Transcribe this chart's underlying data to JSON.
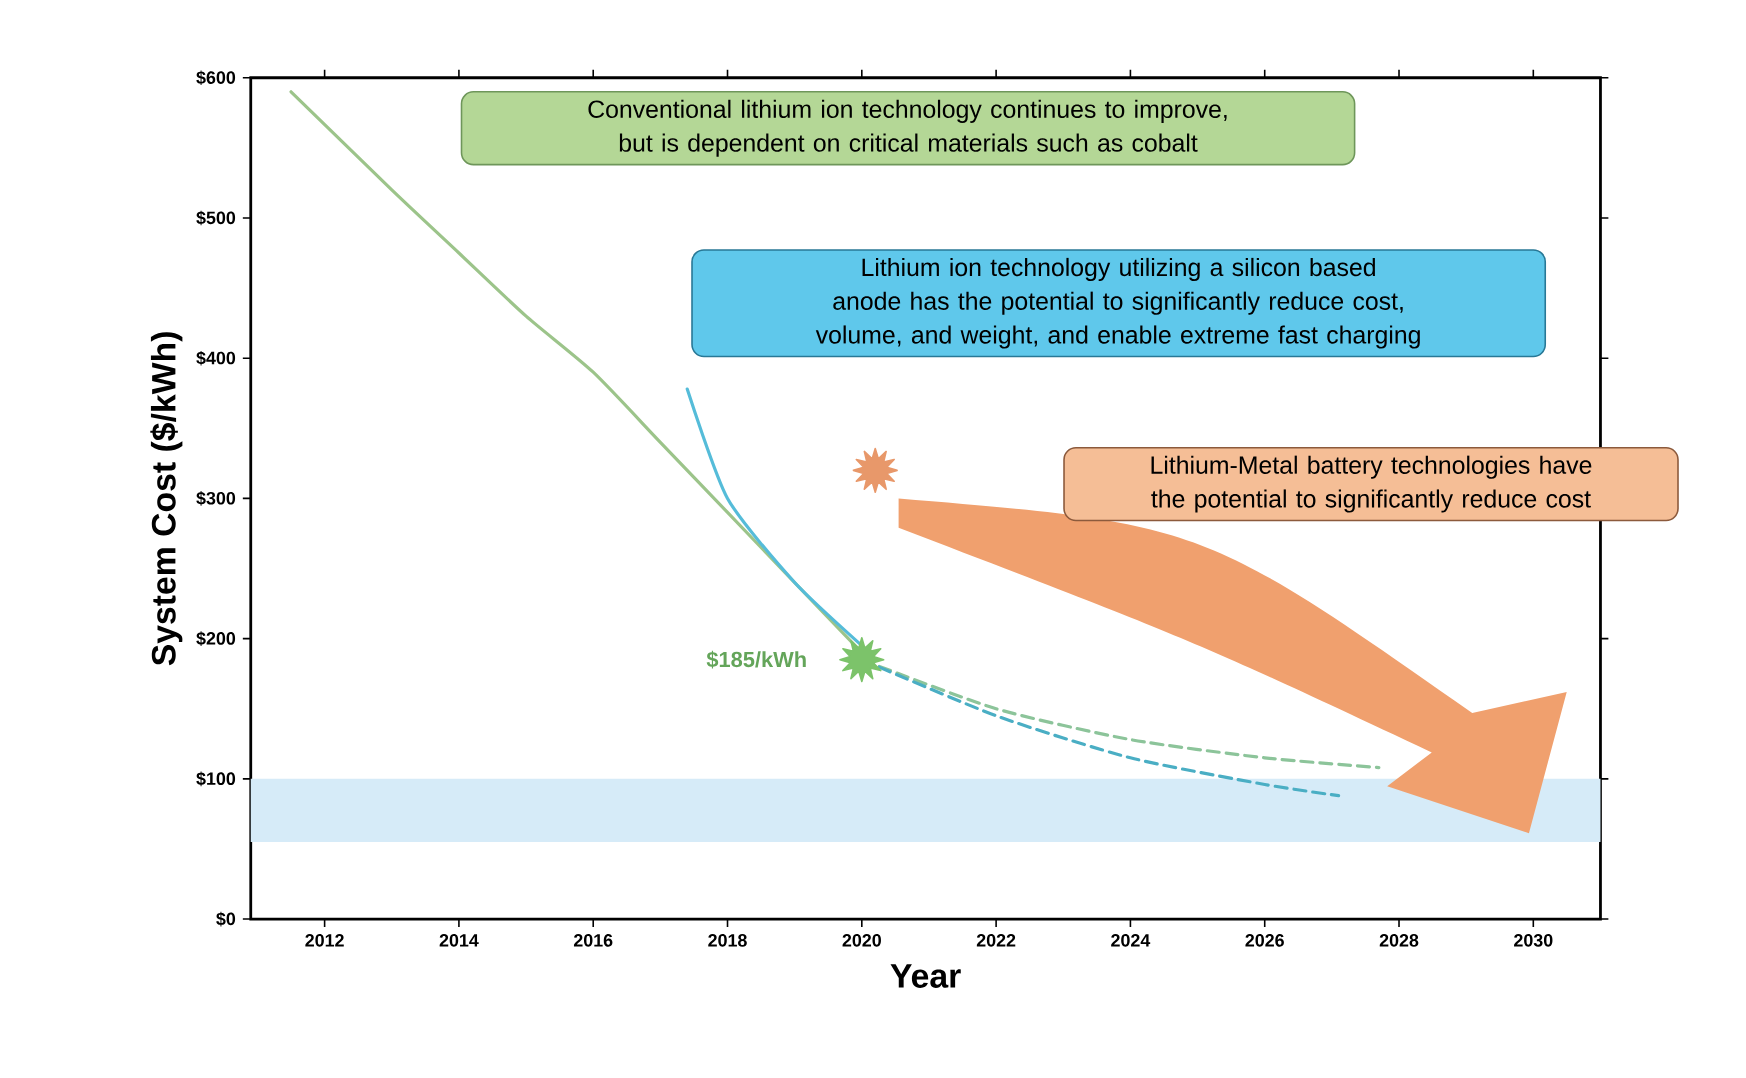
{
  "chart_data": {
    "type": "line",
    "xlabel": "Year",
    "ylabel": "System Cost ($/kWh)",
    "xlim": [
      2010.9,
      2031
    ],
    "ylim": [
      0,
      600
    ],
    "xticks": [
      2012,
      2014,
      2016,
      2018,
      2020,
      2022,
      2024,
      2026,
      2028,
      2030
    ],
    "yticks": [
      {
        "value": 0,
        "label": "$0"
      },
      {
        "value": 100,
        "label": "$100"
      },
      {
        "value": 200,
        "label": "$200"
      },
      {
        "value": 300,
        "label": "$300"
      },
      {
        "value": 400,
        "label": "$400"
      },
      {
        "value": 500,
        "label": "$500"
      },
      {
        "value": 600,
        "label": "$600"
      }
    ],
    "grid": false,
    "marker": "none",
    "series": [
      {
        "color": "#9cc48a",
        "x": [
          2011.5,
          2013,
          2014,
          2015,
          2016,
          2017,
          2018,
          2019,
          2020
        ],
        "values": [
          590,
          520,
          475,
          430,
          390,
          340,
          290,
          240,
          190
        ]
      },
      {
        "color": "#55bcd9",
        "x": [
          2017.4,
          2018,
          2019,
          2020
        ],
        "values": [
          378,
          300,
          240,
          195
        ]
      },
      {
        "color": "#8cc49a",
        "line_style": "dashed",
        "x": [
          2020,
          2022,
          2024,
          2026,
          2027.7
        ],
        "values": [
          185,
          150,
          128,
          115,
          108
        ]
      },
      {
        "color": "#4aaec4",
        "line_style": "dashed",
        "x": [
          2020,
          2022,
          2024,
          2026,
          2027.1
        ],
        "values": [
          185,
          145,
          115,
          96,
          88
        ]
      },
      {
        "type": "scatter",
        "marker": "star",
        "color": "#7cc36a",
        "x": [
          2020
        ],
        "values": [
          185
        ]
      },
      {
        "type": "scatter",
        "marker": "star",
        "color": "#e8986a",
        "x": [
          2020.2
        ],
        "values": [
          320
        ]
      }
    ],
    "bands": [
      {
        "axis": "y",
        "from": 55,
        "to": 100,
        "color": "#d6ebf8"
      }
    ],
    "annotations": [
      "Conventional lithium ion technology continues to improve, but is dependent on critical materials such as cobalt",
      "Lithium ion technology utilizing a silicon based anode has the potential to significantly reduce cost, volume, and weight, and enable extreme fast charging",
      "Lithium-Metal battery technologies have the potential to significantly reduce cost",
      {
        "text": "$185/kWh",
        "x": 2020,
        "y": 185
      }
    ]
  }
}
